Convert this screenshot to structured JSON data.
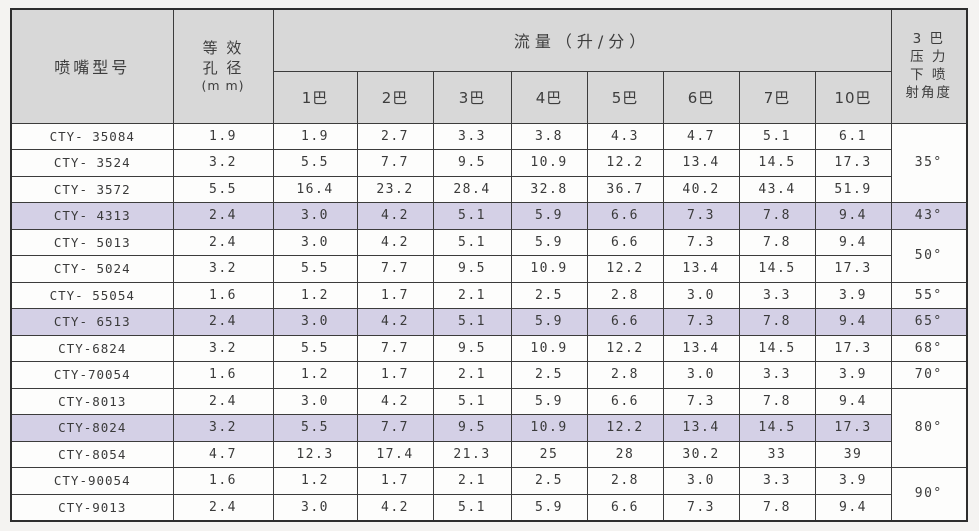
{
  "table": {
    "header": {
      "model": "喷嘴型号",
      "aperture_line1": "等 效",
      "aperture_line2": "孔 径",
      "aperture_unit": "(m m)",
      "flow_title": "流量（升/分）",
      "pressure_cols": [
        "1巴",
        "2巴",
        "3巴",
        "4巴",
        "5巴",
        "6巴",
        "7巴",
        "10巴"
      ],
      "angle_line1": "3 巴",
      "angle_line2": "压 力",
      "angle_line3": "下 喷",
      "angle_line4": "射角度"
    },
    "rows": [
      {
        "model": "CTY- 35084",
        "aperture": "1.9",
        "flows": [
          "1.9",
          "2.7",
          "3.3",
          "3.8",
          "4.3",
          "4.7",
          "5.1",
          "6.1"
        ],
        "highlight": false,
        "angle": {
          "label": "35°",
          "rowspan": 3,
          "highlight": false
        }
      },
      {
        "model": "CTY- 3524",
        "aperture": "3.2",
        "flows": [
          "5.5",
          "7.7",
          "9.5",
          "10.9",
          "12.2",
          "13.4",
          "14.5",
          "17.3"
        ],
        "highlight": false
      },
      {
        "model": "CTY- 3572",
        "aperture": "5.5",
        "flows": [
          "16.4",
          "23.2",
          "28.4",
          "32.8",
          "36.7",
          "40.2",
          "43.4",
          "51.9"
        ],
        "highlight": false
      },
      {
        "model": "CTY- 4313",
        "aperture": "2.4",
        "flows": [
          "3.0",
          "4.2",
          "5.1",
          "5.9",
          "6.6",
          "7.3",
          "7.8",
          "9.4"
        ],
        "highlight": true,
        "angle": {
          "label": "43°",
          "rowspan": 1,
          "highlight": true
        }
      },
      {
        "model": "CTY- 5013",
        "aperture": "2.4",
        "flows": [
          "3.0",
          "4.2",
          "5.1",
          "5.9",
          "6.6",
          "7.3",
          "7.8",
          "9.4"
        ],
        "highlight": false,
        "angle": {
          "label": "50°",
          "rowspan": 2,
          "highlight": false
        }
      },
      {
        "model": "CTY- 5024",
        "aperture": "3.2",
        "flows": [
          "5.5",
          "7.7",
          "9.5",
          "10.9",
          "12.2",
          "13.4",
          "14.5",
          "17.3"
        ],
        "highlight": false
      },
      {
        "model": "CTY- 55054",
        "aperture": "1.6",
        "flows": [
          "1.2",
          "1.7",
          "2.1",
          "2.5",
          "2.8",
          "3.0",
          "3.3",
          "3.9"
        ],
        "highlight": false,
        "angle": {
          "label": "55°",
          "rowspan": 1,
          "highlight": false
        }
      },
      {
        "model": "CTY- 6513",
        "aperture": "2.4",
        "flows": [
          "3.0",
          "4.2",
          "5.1",
          "5.9",
          "6.6",
          "7.3",
          "7.8",
          "9.4"
        ],
        "highlight": true,
        "angle": {
          "label": "65°",
          "rowspan": 1,
          "highlight": true
        }
      },
      {
        "model": "CTY-6824",
        "aperture": "3.2",
        "flows": [
          "5.5",
          "7.7",
          "9.5",
          "10.9",
          "12.2",
          "13.4",
          "14.5",
          "17.3"
        ],
        "highlight": false,
        "angle": {
          "label": "68°",
          "rowspan": 1,
          "highlight": false
        }
      },
      {
        "model": "CTY-70054",
        "aperture": "1.6",
        "flows": [
          "1.2",
          "1.7",
          "2.1",
          "2.5",
          "2.8",
          "3.0",
          "3.3",
          "3.9"
        ],
        "highlight": false,
        "angle": {
          "label": "70°",
          "rowspan": 1,
          "highlight": false
        }
      },
      {
        "model": "CTY-8013",
        "aperture": "2.4",
        "flows": [
          "3.0",
          "4.2",
          "5.1",
          "5.9",
          "6.6",
          "7.3",
          "7.8",
          "9.4"
        ],
        "highlight": false,
        "angle": {
          "label": "80°",
          "rowspan": 3,
          "highlight": false
        }
      },
      {
        "model": "CTY-8024",
        "aperture": "3.2",
        "flows": [
          "5.5",
          "7.7",
          "9.5",
          "10.9",
          "12.2",
          "13.4",
          "14.5",
          "17.3"
        ],
        "highlight": true
      },
      {
        "model": "CTY-8054",
        "aperture": "4.7",
        "flows": [
          "12.3",
          "17.4",
          "21.3",
          "25",
          "28",
          "30.2",
          "33",
          "39"
        ],
        "highlight": false
      },
      {
        "model": "CTY-90054",
        "aperture": "1.6",
        "flows": [
          "1.2",
          "1.7",
          "2.1",
          "2.5",
          "2.8",
          "3.0",
          "3.3",
          "3.9"
        ],
        "highlight": false,
        "angle": {
          "label": "90°",
          "rowspan": 2,
          "highlight": false
        }
      },
      {
        "model": "CTY-9013",
        "aperture": "2.4",
        "flows": [
          "3.0",
          "4.2",
          "5.1",
          "5.9",
          "6.6",
          "7.3",
          "7.8",
          "9.4"
        ],
        "highlight": false
      }
    ],
    "colors": {
      "header_bg": "#d8d8d8",
      "highlight_bg": "#d4d0e6",
      "border": "#3c3c3c",
      "cell_bg": "#fdfdfc"
    }
  }
}
